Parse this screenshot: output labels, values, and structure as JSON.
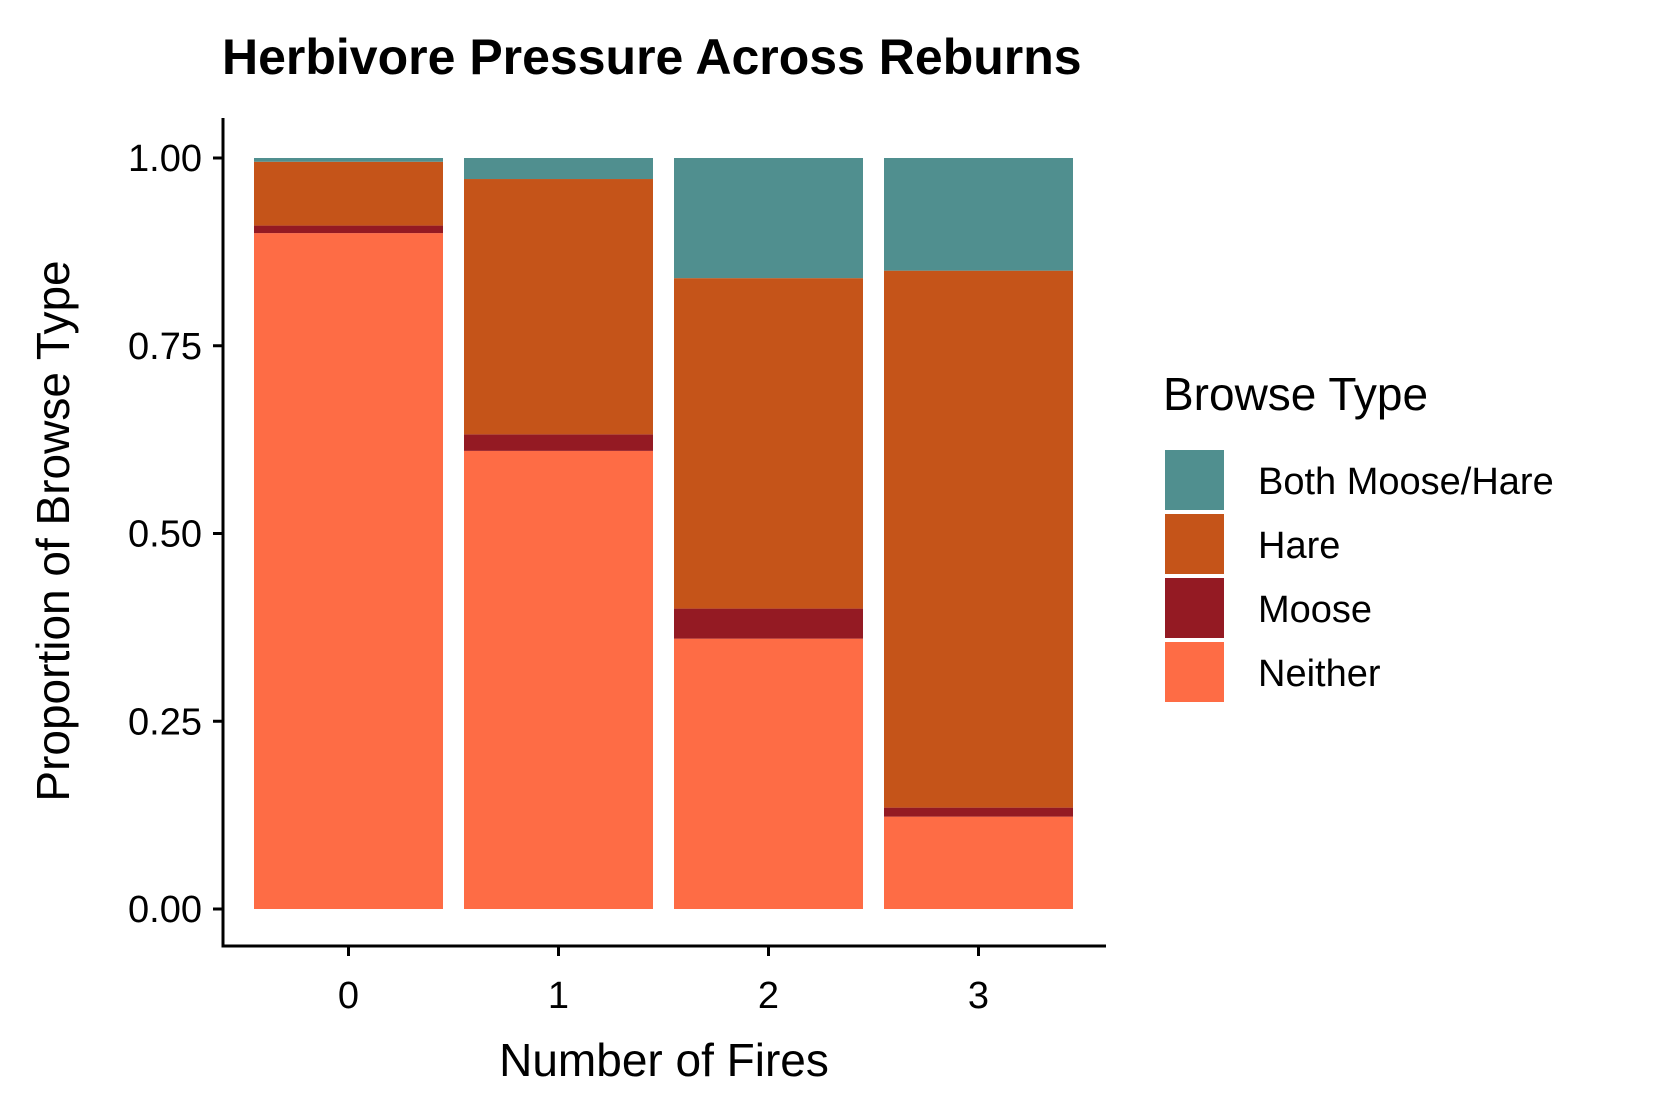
{
  "chart_data": {
    "type": "bar",
    "stacked": true,
    "title": "Herbivore Pressure Across Reburns",
    "xlabel": "Number of Fires",
    "ylabel": "Proportion of Browse Type",
    "categories": [
      "0",
      "1",
      "2",
      "3"
    ],
    "ylim": [
      0,
      1
    ],
    "yticks": [
      "0.00",
      "0.25",
      "0.50",
      "0.75",
      "1.00"
    ],
    "grid": false,
    "legend": {
      "title": "Browse Type",
      "position": "right"
    },
    "series": [
      {
        "name": "Both Moose/Hare",
        "color": "#508F8F",
        "values": [
          0.005,
          0.028,
          0.16,
          0.15
        ]
      },
      {
        "name": "Hare",
        "color": "#C55419",
        "values": [
          0.085,
          0.34,
          0.44,
          0.715
        ]
      },
      {
        "name": "Moose",
        "color": "#941A23",
        "values": [
          0.01,
          0.022,
          0.04,
          0.012
        ]
      },
      {
        "name": "Neither",
        "color": "#FE6C45",
        "values": [
          0.9,
          0.61,
          0.36,
          0.123
        ]
      }
    ]
  }
}
